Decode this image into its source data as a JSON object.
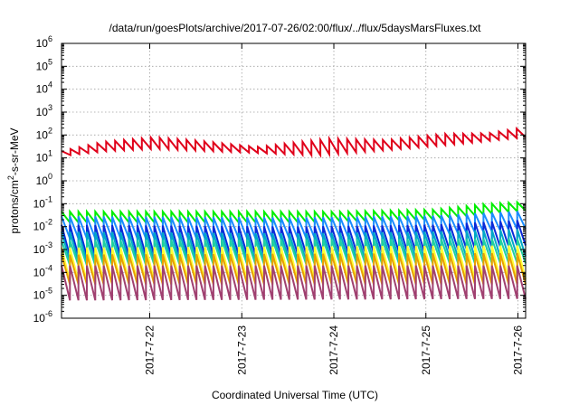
{
  "chart_data": {
    "type": "line",
    "title": "/data/run/goesPlots/archive/2017-07-26/02:00/flux/../flux/5daysMarsFluxes.txt",
    "xlabel": "Coordinated Universal Time (UTC)",
    "ylabel": "protons/cm2-s-sr-MeV",
    "ylabel_parts": {
      "pre": "protons/cm",
      "sup": "2",
      "post": "-s-sr-MeV"
    },
    "yscale": "log",
    "ylim_exponents": [
      -6,
      6
    ],
    "y_ticks": [
      {
        "base": "10",
        "exp": "-6"
      },
      {
        "base": "10",
        "exp": "-5"
      },
      {
        "base": "10",
        "exp": "-4"
      },
      {
        "base": "10",
        "exp": "-3"
      },
      {
        "base": "10",
        "exp": "-2"
      },
      {
        "base": "10",
        "exp": "-1"
      },
      {
        "base": "10",
        "exp": "0"
      },
      {
        "base": "10",
        "exp": "1"
      },
      {
        "base": "10",
        "exp": "2"
      },
      {
        "base": "10",
        "exp": "3"
      },
      {
        "base": "10",
        "exp": "4"
      },
      {
        "base": "10",
        "exp": "5"
      },
      {
        "base": "10",
        "exp": "6"
      }
    ],
    "xlim": [
      "2017-07-21 01:00",
      "2017-07-26 02:00"
    ],
    "x_ticks": [
      "2017-7-22",
      "2017-7-23",
      "2017-7-24",
      "2017-7-25",
      "2017-7-26"
    ],
    "grid": true,
    "legend": "none",
    "series": [
      {
        "color": "#e0001a",
        "sawtooth_count": 52,
        "peak": [
          [
            0,
            20
          ],
          [
            0.09,
            50
          ],
          [
            0.2,
            80
          ],
          [
            0.3,
            55
          ],
          [
            0.42,
            30
          ],
          [
            0.58,
            70
          ],
          [
            0.7,
            60
          ],
          [
            0.82,
            110
          ],
          [
            0.92,
            120
          ],
          [
            1,
            220
          ]
        ],
        "trough": [
          [
            0,
            12
          ],
          [
            0.1,
            20
          ],
          [
            0.2,
            25
          ],
          [
            0.32,
            20
          ],
          [
            0.55,
            13
          ],
          [
            0.7,
            22
          ],
          [
            0.85,
            40
          ],
          [
            1,
            80
          ]
        ]
      },
      {
        "color": "#00ee00",
        "sawtooth_count": 55,
        "peak": [
          [
            0,
            0.045
          ],
          [
            0.3,
            0.045
          ],
          [
            0.6,
            0.045
          ],
          [
            0.8,
            0.055
          ],
          [
            0.92,
            0.1
          ],
          [
            1,
            0.12
          ]
        ],
        "trough": [
          [
            0,
            0.015
          ],
          [
            0.5,
            0.015
          ],
          [
            0.8,
            0.02
          ],
          [
            1,
            0.05
          ]
        ]
      },
      {
        "color": "#1a8cff",
        "sawtooth_count": 55,
        "peak": [
          [
            0,
            0.028
          ],
          [
            0.5,
            0.025
          ],
          [
            0.8,
            0.03
          ],
          [
            1,
            0.05
          ]
        ],
        "trough": [
          [
            0,
            0.003
          ],
          [
            0.5,
            0.003
          ],
          [
            0.8,
            0.004
          ],
          [
            1,
            0.008
          ]
        ]
      },
      {
        "color": "#0a2ad8",
        "sawtooth_count": 55,
        "peak": [
          [
            0,
            0.012
          ],
          [
            0.5,
            0.01
          ],
          [
            0.8,
            0.012
          ],
          [
            1,
            0.02
          ]
        ],
        "trough": [
          [
            0,
            0.0005
          ],
          [
            0.5,
            0.0006
          ],
          [
            0.8,
            0.0008
          ],
          [
            1,
            0.0015
          ]
        ]
      },
      {
        "color": "#00a8c8",
        "sawtooth_count": 55,
        "peak": [
          [
            0,
            0.006
          ],
          [
            0.5,
            0.005
          ],
          [
            0.8,
            0.006
          ],
          [
            1,
            0.008
          ]
        ],
        "trough": [
          [
            0,
            0.0003
          ],
          [
            0.5,
            0.0003
          ],
          [
            1,
            0.0005
          ]
        ]
      },
      {
        "color": "#20d0a0",
        "sawtooth_count": 55,
        "peak": [
          [
            0,
            0.0025
          ],
          [
            1,
            0.003
          ]
        ],
        "trough": [
          [
            0,
            0.0002
          ],
          [
            1,
            0.00025
          ]
        ]
      },
      {
        "color": "#ffff33",
        "sawtooth_count": 55,
        "peak": [
          [
            0,
            0.0012
          ],
          [
            1,
            0.0015
          ]
        ],
        "trough": [
          [
            0,
            4e-05
          ],
          [
            1,
            5e-05
          ]
        ]
      },
      {
        "color": "#e8a000",
        "sawtooth_count": 55,
        "peak": [
          [
            0,
            0.0006
          ],
          [
            1,
            0.0007
          ]
        ],
        "trough": [
          [
            0,
            3e-05
          ],
          [
            1,
            3e-05
          ]
        ]
      },
      {
        "color": "#a04070",
        "sawtooth_count": 55,
        "peak": [
          [
            0,
            0.0002
          ],
          [
            1,
            0.0002
          ]
        ],
        "trough": [
          [
            0,
            6e-06
          ],
          [
            1,
            7e-06
          ]
        ]
      }
    ]
  }
}
